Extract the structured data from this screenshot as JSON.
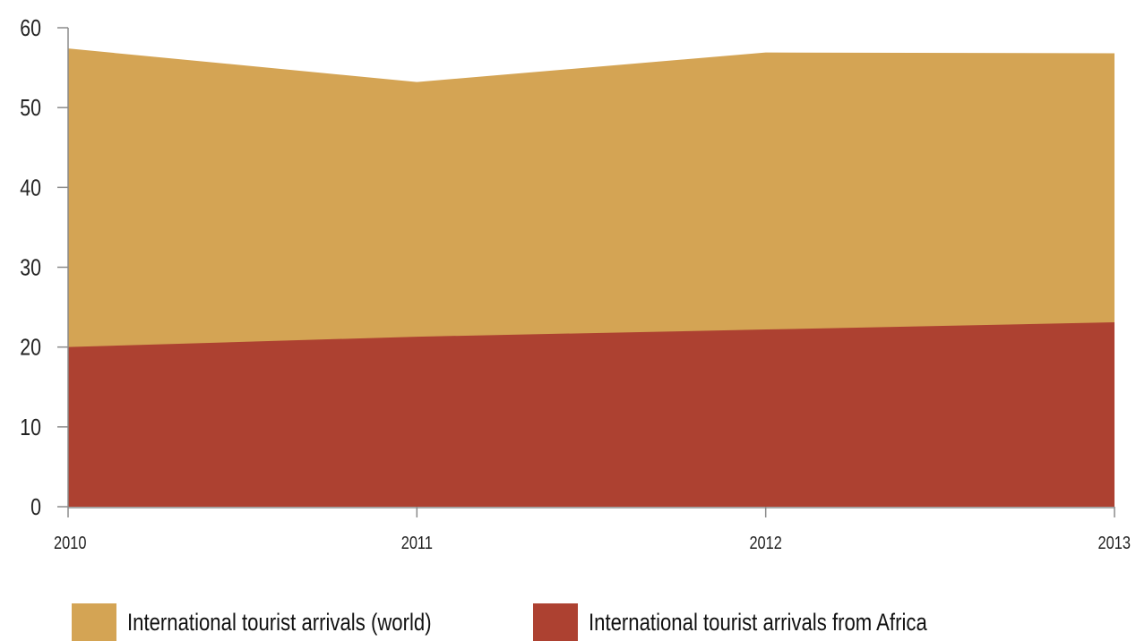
{
  "chart_data": {
    "type": "area",
    "stacked": false,
    "x": [
      "2010",
      "2011",
      "2012",
      "2013"
    ],
    "series": [
      {
        "name": "International tourist arrivals (world)",
        "values": [
          57.4,
          53.2,
          56.9,
          56.8
        ],
        "color": "#D4A454"
      },
      {
        "name": "International tourist arrivals from Africa",
        "values": [
          20.0,
          21.3,
          22.2,
          23.1
        ],
        "color": "#AD4131"
      }
    ],
    "y_ticks": [
      "0",
      "10",
      "20",
      "30",
      "40",
      "50",
      "60"
    ],
    "ylim": [
      0,
      60
    ],
    "grid": false,
    "legend_position": "bottom-left"
  },
  "legend": {
    "items": [
      {
        "label": "International tourist arrivals (world)",
        "color": "#D4A454"
      },
      {
        "label": "International tourist arrivals from Africa",
        "color": "#AD4131"
      }
    ]
  }
}
